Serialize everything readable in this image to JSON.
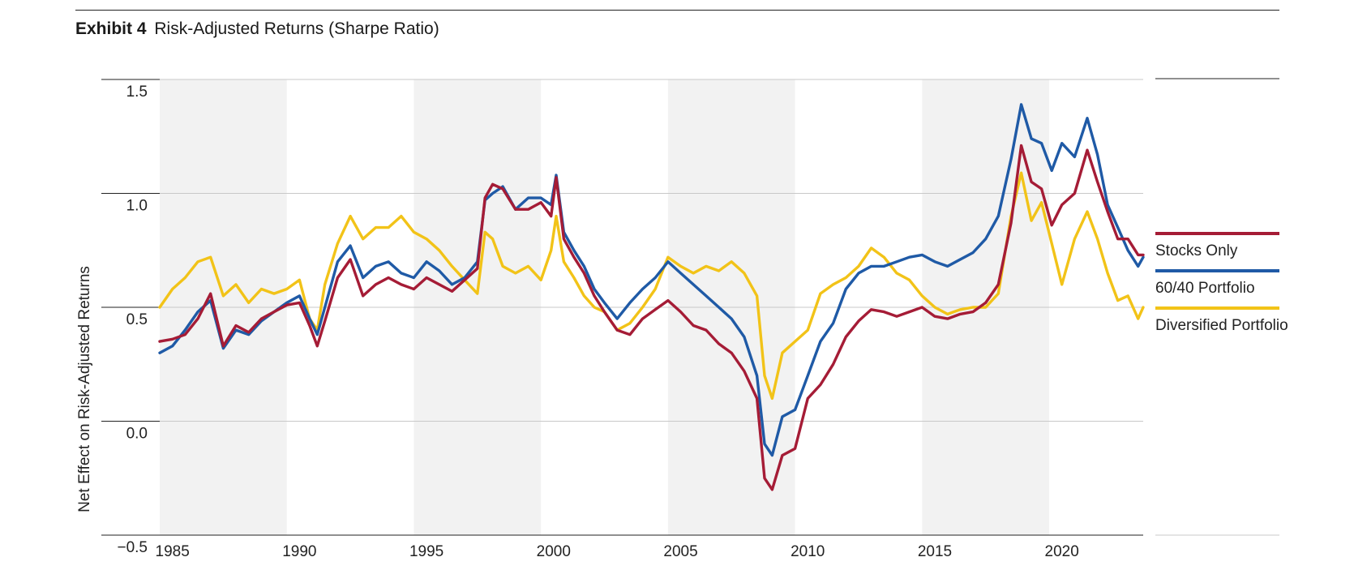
{
  "header": {
    "exhibit": "Exhibit 4",
    "title": "Risk-Adjusted Returns (Sharpe Ratio)"
  },
  "chart_data": {
    "type": "line",
    "title": "Risk-Adjusted Returns (Sharpe Ratio)",
    "xlabel": "",
    "ylabel": "Net Effect on Risk-Adjusted Returns",
    "xlim": [
      1984.5,
      2023.2
    ],
    "ylim": [
      -0.5,
      1.5
    ],
    "x_ticks": [
      1985,
      1990,
      1995,
      2000,
      2005,
      2010,
      2015,
      2020
    ],
    "x_tick_labels": [
      "1985",
      "1990",
      "1995",
      "2000",
      "2005",
      "2010",
      "2015",
      "2020"
    ],
    "y_ticks": [
      1.5,
      1.0,
      0.5,
      0.0,
      -0.5
    ],
    "y_tick_labels": [
      "1.5",
      "1.0",
      "0.5",
      "0.0",
      "−0.5"
    ],
    "grid": "horizontal",
    "shaded_bands": [
      [
        1984.5,
        1989.5
      ],
      [
        1994.5,
        1999.5
      ],
      [
        2004.5,
        2009.5
      ],
      [
        2014.5,
        2019.5
      ]
    ],
    "legend_position": "right",
    "series": [
      {
        "name": "Stocks Only",
        "color": "#a51c36",
        "x": [
          1984.5,
          1985.0,
          1985.5,
          1986.0,
          1986.5,
          1987.0,
          1987.5,
          1988.0,
          1988.5,
          1989.0,
          1989.5,
          1990.0,
          1990.4,
          1990.7,
          1991.0,
          1991.5,
          1992.0,
          1992.5,
          1993.0,
          1993.5,
          1994.0,
          1994.5,
          1995.0,
          1995.5,
          1996.0,
          1996.5,
          1997.0,
          1997.3,
          1997.6,
          1998.0,
          1998.5,
          1999.0,
          1999.5,
          1999.9,
          2000.1,
          2000.4,
          2000.8,
          2001.2,
          2001.6,
          2002.0,
          2002.5,
          2003.0,
          2003.5,
          2004.0,
          2004.5,
          2005.0,
          2005.5,
          2006.0,
          2006.5,
          2007.0,
          2007.5,
          2008.0,
          2008.3,
          2008.6,
          2009.0,
          2009.5,
          2010.0,
          2010.5,
          2011.0,
          2011.5,
          2012.0,
          2012.5,
          2013.0,
          2013.5,
          2014.0,
          2014.5,
          2015.0,
          2015.5,
          2016.0,
          2016.5,
          2017.0,
          2017.5,
          2018.0,
          2018.4,
          2018.8,
          2019.2,
          2019.6,
          2020.0,
          2020.5,
          2021.0,
          2021.4,
          2021.8,
          2022.2,
          2022.6,
          2023.0,
          2023.2
        ],
        "values": [
          0.35,
          0.36,
          0.38,
          0.45,
          0.56,
          0.33,
          0.42,
          0.39,
          0.45,
          0.48,
          0.51,
          0.52,
          0.42,
          0.33,
          0.44,
          0.63,
          0.71,
          0.55,
          0.6,
          0.63,
          0.6,
          0.58,
          0.63,
          0.6,
          0.57,
          0.62,
          0.67,
          0.98,
          1.04,
          1.02,
          0.93,
          0.93,
          0.96,
          0.9,
          1.07,
          0.8,
          0.72,
          0.65,
          0.55,
          0.48,
          0.4,
          0.38,
          0.45,
          0.49,
          0.53,
          0.48,
          0.42,
          0.4,
          0.34,
          0.3,
          0.22,
          0.1,
          -0.25,
          -0.3,
          -0.15,
          -0.12,
          0.1,
          0.16,
          0.25,
          0.37,
          0.44,
          0.49,
          0.48,
          0.46,
          0.48,
          0.5,
          0.46,
          0.45,
          0.47,
          0.48,
          0.52,
          0.6,
          0.87,
          1.21,
          1.05,
          1.02,
          0.86,
          0.95,
          1.0,
          1.19,
          1.05,
          0.92,
          0.8,
          0.8,
          0.73,
          0.73
        ]
      },
      {
        "name": "60/40 Portfolio",
        "color": "#1f5aa6",
        "x": [
          1984.5,
          1985.0,
          1985.5,
          1986.0,
          1986.5,
          1987.0,
          1987.5,
          1988.0,
          1988.5,
          1989.0,
          1989.5,
          1990.0,
          1990.4,
          1990.7,
          1991.0,
          1991.5,
          1992.0,
          1992.5,
          1993.0,
          1993.5,
          1994.0,
          1994.5,
          1995.0,
          1995.5,
          1996.0,
          1996.5,
          1997.0,
          1997.3,
          1997.6,
          1998.0,
          1998.5,
          1999.0,
          1999.5,
          1999.9,
          2000.1,
          2000.4,
          2000.8,
          2001.2,
          2001.6,
          2002.0,
          2002.5,
          2003.0,
          2003.5,
          2004.0,
          2004.5,
          2005.0,
          2005.5,
          2006.0,
          2006.5,
          2007.0,
          2007.5,
          2008.0,
          2008.3,
          2008.6,
          2009.0,
          2009.5,
          2010.0,
          2010.5,
          2011.0,
          2011.5,
          2012.0,
          2012.5,
          2013.0,
          2013.5,
          2014.0,
          2014.5,
          2015.0,
          2015.5,
          2016.0,
          2016.5,
          2017.0,
          2017.5,
          2018.0,
          2018.4,
          2018.8,
          2019.2,
          2019.6,
          2020.0,
          2020.5,
          2021.0,
          2021.4,
          2021.8,
          2022.2,
          2022.6,
          2023.0,
          2023.2
        ],
        "values": [
          0.3,
          0.33,
          0.4,
          0.48,
          0.53,
          0.32,
          0.4,
          0.38,
          0.44,
          0.48,
          0.52,
          0.55,
          0.45,
          0.38,
          0.5,
          0.7,
          0.77,
          0.63,
          0.68,
          0.7,
          0.65,
          0.63,
          0.7,
          0.66,
          0.6,
          0.63,
          0.7,
          0.97,
          1.0,
          1.03,
          0.93,
          0.98,
          0.98,
          0.95,
          1.08,
          0.83,
          0.75,
          0.68,
          0.58,
          0.52,
          0.45,
          0.52,
          0.58,
          0.63,
          0.7,
          0.65,
          0.6,
          0.55,
          0.5,
          0.45,
          0.37,
          0.2,
          -0.1,
          -0.15,
          0.02,
          0.05,
          0.2,
          0.35,
          0.43,
          0.58,
          0.65,
          0.68,
          0.68,
          0.7,
          0.72,
          0.73,
          0.7,
          0.68,
          0.71,
          0.74,
          0.8,
          0.9,
          1.15,
          1.39,
          1.24,
          1.22,
          1.1,
          1.22,
          1.16,
          1.33,
          1.17,
          0.95,
          0.85,
          0.75,
          0.68,
          0.72
        ]
      },
      {
        "name": "Diversified Portfolio",
        "color": "#f2c318",
        "x": [
          1984.5,
          1985.0,
          1985.5,
          1986.0,
          1986.5,
          1987.0,
          1987.5,
          1988.0,
          1988.5,
          1989.0,
          1989.5,
          1990.0,
          1990.4,
          1990.7,
          1991.0,
          1991.5,
          1992.0,
          1992.5,
          1993.0,
          1993.5,
          1994.0,
          1994.5,
          1995.0,
          1995.5,
          1996.0,
          1996.5,
          1997.0,
          1997.3,
          1997.6,
          1998.0,
          1998.5,
          1999.0,
          1999.5,
          1999.9,
          2000.1,
          2000.4,
          2000.8,
          2001.2,
          2001.6,
          2002.0,
          2002.5,
          2003.0,
          2003.5,
          2004.0,
          2004.5,
          2005.0,
          2005.5,
          2006.0,
          2006.5,
          2007.0,
          2007.5,
          2008.0,
          2008.3,
          2008.6,
          2009.0,
          2009.5,
          2010.0,
          2010.5,
          2011.0,
          2011.5,
          2012.0,
          2012.5,
          2013.0,
          2013.5,
          2014.0,
          2014.5,
          2015.0,
          2015.5,
          2016.0,
          2016.5,
          2017.0,
          2017.5,
          2018.0,
          2018.4,
          2018.8,
          2019.2,
          2019.6,
          2020.0,
          2020.5,
          2021.0,
          2021.4,
          2021.8,
          2022.2,
          2022.6,
          2023.0,
          2023.2
        ],
        "values": [
          0.5,
          0.58,
          0.63,
          0.7,
          0.72,
          0.55,
          0.6,
          0.52,
          0.58,
          0.56,
          0.58,
          0.62,
          0.45,
          0.4,
          0.6,
          0.78,
          0.9,
          0.8,
          0.85,
          0.85,
          0.9,
          0.83,
          0.8,
          0.75,
          0.68,
          0.62,
          0.56,
          0.83,
          0.8,
          0.68,
          0.65,
          0.68,
          0.62,
          0.75,
          0.9,
          0.7,
          0.63,
          0.55,
          0.5,
          0.48,
          0.4,
          0.43,
          0.5,
          0.58,
          0.72,
          0.68,
          0.65,
          0.68,
          0.66,
          0.7,
          0.65,
          0.55,
          0.2,
          0.1,
          0.3,
          0.35,
          0.4,
          0.56,
          0.6,
          0.63,
          0.68,
          0.76,
          0.72,
          0.65,
          0.62,
          0.55,
          0.5,
          0.47,
          0.49,
          0.5,
          0.5,
          0.56,
          0.9,
          1.09,
          0.88,
          0.96,
          0.78,
          0.6,
          0.8,
          0.92,
          0.8,
          0.65,
          0.53,
          0.55,
          0.45,
          0.5
        ]
      }
    ]
  }
}
